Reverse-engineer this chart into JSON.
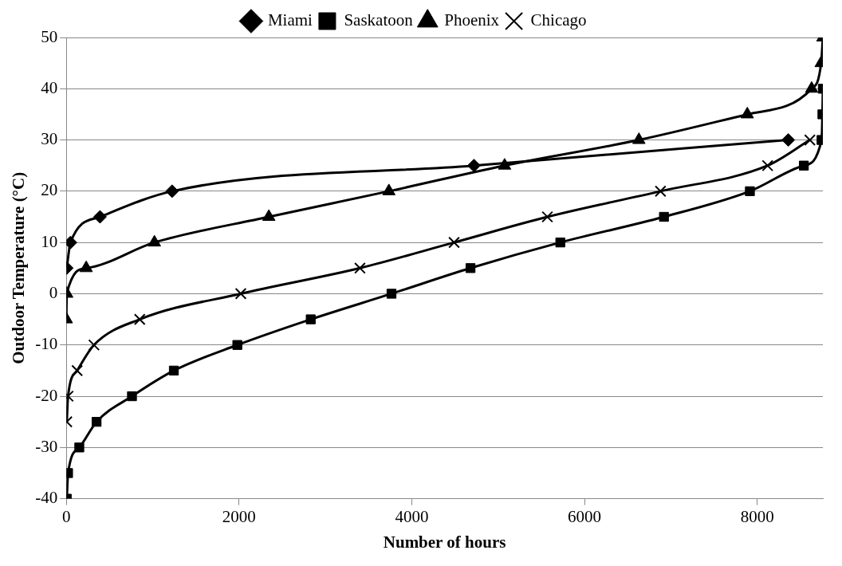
{
  "chart_data": {
    "type": "line",
    "xlabel": "Number of hours",
    "ylabel": "Outdoor Temperature (°C)",
    "xlim": [
      0,
      8760
    ],
    "xticks": [
      0,
      2000,
      4000,
      6000,
      8000
    ],
    "ylim": [
      -40,
      50
    ],
    "yticks": [
      -40,
      -30,
      -20,
      -10,
      0,
      10,
      20,
      30,
      40,
      50
    ],
    "grid": "y",
    "legend": "top",
    "series": [
      {
        "name": "Miami",
        "color": "#000000",
        "marker": "diamond",
        "x": [
          5,
          48,
          390,
          1225,
          4720,
          8360
        ],
        "values": [
          5,
          10,
          15,
          20,
          25,
          30
        ]
      },
      {
        "name": "Saskatoon",
        "color": "#000000",
        "marker": "square",
        "x": [
          5,
          20,
          150,
          350,
          760,
          1245,
          1980,
          2830,
          3765,
          4680,
          5720,
          6920,
          7915,
          8540,
          8745,
          8755,
          8760
        ],
        "values": [
          -40,
          -35,
          -30,
          -25,
          -20,
          -15,
          -10,
          -5,
          0,
          5,
          10,
          15,
          20,
          25,
          30,
          35,
          40
        ]
      },
      {
        "name": "Phoenix",
        "color": "#000000",
        "marker": "triangle",
        "x": [
          0,
          5,
          230,
          1020,
          2345,
          3735,
          5075,
          6630,
          7885,
          8630,
          8740,
          8760
        ],
        "values": [
          -5,
          0,
          5,
          10,
          15,
          20,
          25,
          30,
          35,
          40,
          45,
          50
        ]
      },
      {
        "name": "Chicago",
        "color": "#000000",
        "marker": "cross",
        "x": [
          5,
          20,
          125,
          320,
          850,
          2020,
          3400,
          4490,
          5570,
          6880,
          8120,
          8610
        ],
        "values": [
          -25,
          -20,
          -15,
          -10,
          -5,
          0,
          5,
          10,
          15,
          20,
          25,
          30
        ]
      }
    ]
  }
}
